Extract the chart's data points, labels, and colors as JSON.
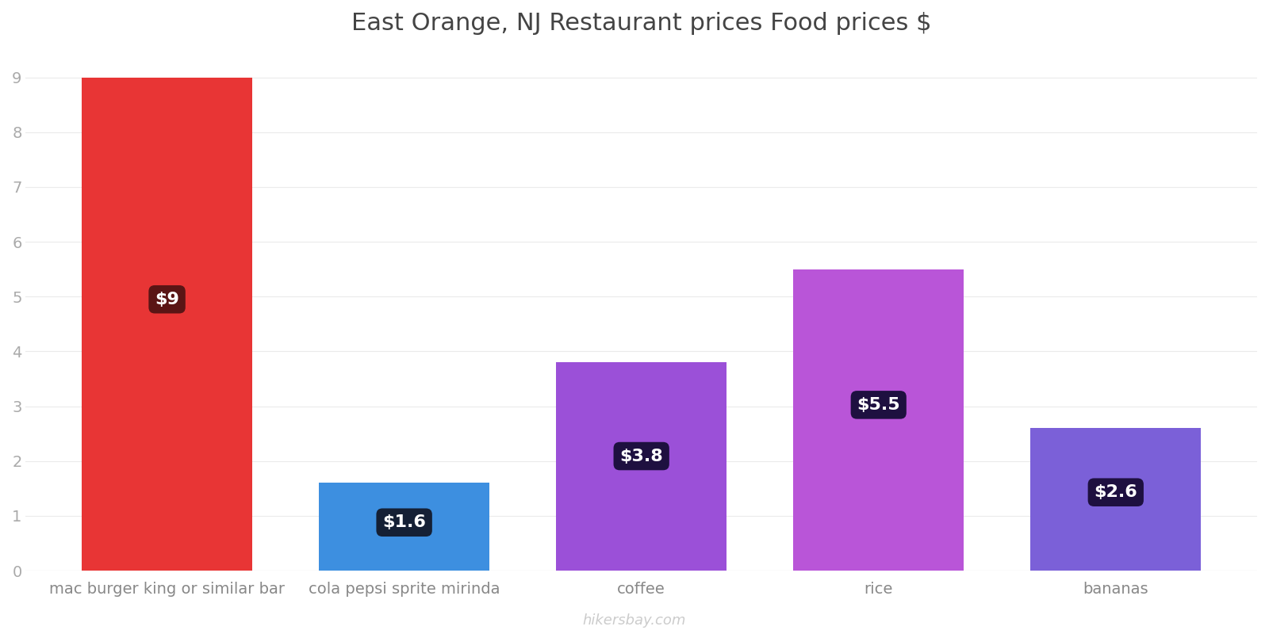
{
  "title": "East Orange, NJ Restaurant prices Food prices $",
  "categories": [
    "mac burger king or similar bar",
    "cola pepsi sprite mirinda",
    "coffee",
    "rice",
    "bananas"
  ],
  "values": [
    9.0,
    1.6,
    3.8,
    5.5,
    2.6
  ],
  "bar_colors": [
    "#e83535",
    "#3d8fe0",
    "#9b50d8",
    "#b955d8",
    "#7b60d8"
  ],
  "label_texts": [
    "$9",
    "$1.6",
    "$3.8",
    "$5.5",
    "$2.6"
  ],
  "label_bg_colors": [
    "#5a1515",
    "#152035",
    "#1e1040",
    "#1e1040",
    "#1e1040"
  ],
  "ylim": [
    0,
    9.5
  ],
  "yticks": [
    0,
    1,
    2,
    3,
    4,
    5,
    6,
    7,
    8,
    9
  ],
  "title_fontsize": 22,
  "tick_fontsize": 14,
  "label_fontsize": 16,
  "watermark": "hikersbay.com",
  "background_color": "#ffffff",
  "grid_color": "#ebebeb",
  "bar_width": 0.72
}
